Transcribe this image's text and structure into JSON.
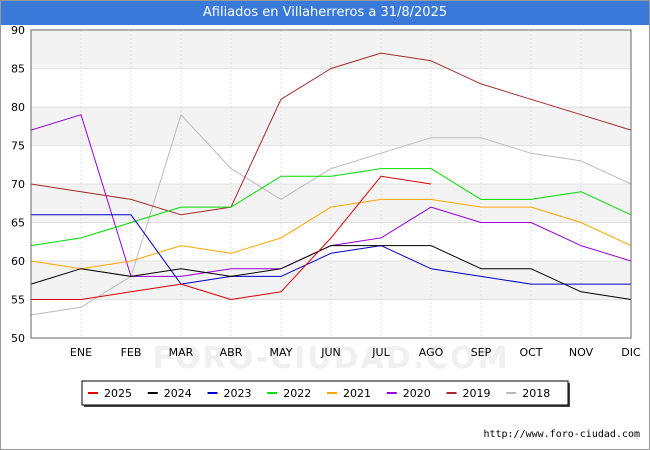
{
  "header": {
    "title": "Afiliados en Villaherreros a 31/8/2025"
  },
  "footer": {
    "url": "http://www.foro-ciudad.com"
  },
  "watermark": "FORO-CIUDAD.COM",
  "chart_data": {
    "type": "line",
    "title": "Afiliados en Villaherreros a 31/8/2025",
    "xlabel": "",
    "ylabel": "",
    "categories": [
      "",
      "ENE",
      "FEB",
      "MAR",
      "ABR",
      "MAY",
      "JUN",
      "JUL",
      "AGO",
      "SEP",
      "OCT",
      "NOV",
      "DIC"
    ],
    "ylim": [
      50,
      90
    ],
    "yticks": [
      50,
      55,
      60,
      65,
      70,
      75,
      80,
      85,
      90
    ],
    "grid": true,
    "legend_position": "bottom",
    "series": [
      {
        "name": "2025",
        "color": "#dd0000",
        "values": [
          55,
          55,
          56,
          57,
          55,
          56,
          63,
          71,
          70,
          null,
          null,
          null,
          null
        ]
      },
      {
        "name": "2024",
        "color": "#000000",
        "values": [
          57,
          59,
          58,
          59,
          58,
          59,
          62,
          62,
          62,
          59,
          59,
          56,
          55
        ]
      },
      {
        "name": "2023",
        "color": "#0000cc",
        "values": [
          66,
          66,
          66,
          57,
          58,
          58,
          61,
          62,
          59,
          58,
          57,
          57,
          57
        ]
      },
      {
        "name": "2022",
        "color": "#00dd00",
        "values": [
          62,
          63,
          65,
          67,
          67,
          71,
          71,
          72,
          72,
          68,
          68,
          69,
          66
        ]
      },
      {
        "name": "2021",
        "color": "#ffa500",
        "values": [
          60,
          59,
          60,
          62,
          61,
          63,
          67,
          68,
          68,
          67,
          67,
          65,
          62
        ]
      },
      {
        "name": "2020",
        "color": "#9900dd",
        "values": [
          77,
          79,
          58,
          58,
          59,
          59,
          62,
          63,
          67,
          65,
          65,
          62,
          60
        ]
      },
      {
        "name": "2019",
        "color": "#a52a2a",
        "values": [
          70,
          69,
          68,
          66,
          67,
          81,
          85,
          87,
          86,
          83,
          81,
          79,
          77
        ]
      },
      {
        "name": "2018",
        "color": "#bbbbbb",
        "values": [
          53,
          54,
          58,
          79,
          72,
          68,
          72,
          74,
          76,
          76,
          74,
          73,
          70
        ]
      }
    ]
  }
}
